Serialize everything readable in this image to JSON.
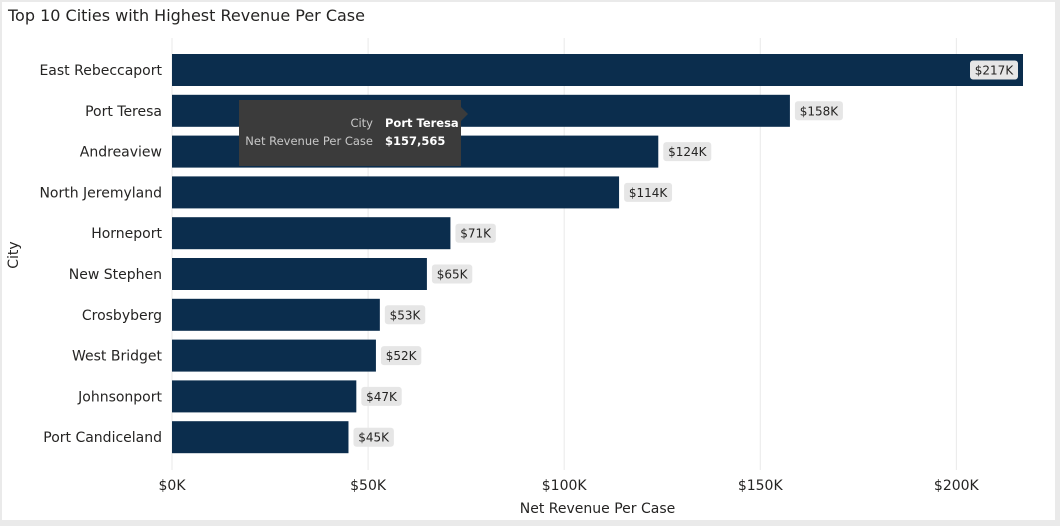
{
  "chart_data": {
    "type": "bar",
    "orientation": "horizontal",
    "title": "Top 10 Cities with Highest Revenue Per Case",
    "xlabel": "Net Revenue Per Case",
    "ylabel": "City",
    "categories": [
      "East Rebeccaport",
      "Port Teresa",
      "Andreaview",
      "North Jeremyland",
      "Horneport",
      "New Stephen",
      "Crosbyberg",
      "West Bridget",
      "Johnsonport",
      "Port Candiceland"
    ],
    "values": [
      217000,
      157565,
      124000,
      114000,
      71000,
      65000,
      53000,
      52000,
      47000,
      45000
    ],
    "data_labels": [
      "$217K",
      "$158K",
      "$124K",
      "$114K",
      "$71K",
      "$65K",
      "$53K",
      "$52K",
      "$47K",
      "$45K"
    ],
    "xlim": [
      0,
      217000
    ],
    "x_ticks": [
      0,
      50000,
      100000,
      150000,
      200000
    ],
    "x_tick_labels": [
      "$0K",
      "$50K",
      "$100K",
      "$150K",
      "$200K"
    ],
    "grid": true,
    "bar_color": "#0b2d4d"
  },
  "tooltip": {
    "city_key": "City",
    "city_value": "Port Teresa",
    "metric_key": "Net Revenue Per Case",
    "metric_value": "$157,565"
  }
}
